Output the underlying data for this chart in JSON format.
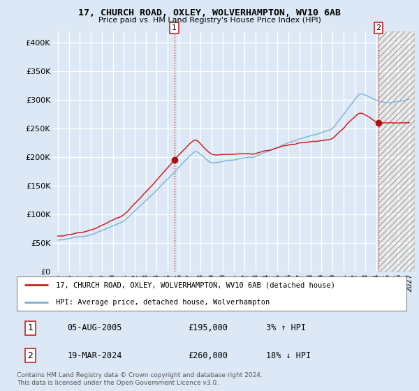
{
  "title": "17, CHURCH ROAD, OXLEY, WOLVERHAMPTON, WV10 6AB",
  "subtitle": "Price paid vs. HM Land Registry's House Price Index (HPI)",
  "ylim": [
    0,
    420000
  ],
  "yticks": [
    0,
    50000,
    100000,
    150000,
    200000,
    250000,
    300000,
    350000,
    400000
  ],
  "ytick_labels": [
    "£0",
    "£50K",
    "£100K",
    "£150K",
    "£200K",
    "£250K",
    "£300K",
    "£350K",
    "£400K"
  ],
  "bg_color": "#dce8f5",
  "plot_bg_color": "#dce8f5",
  "future_bg_color": "#e8e8e8",
  "grid_color": "#ffffff",
  "hpi_color": "#7bafd4",
  "price_color": "#cc2222",
  "marker_color": "#aa1111",
  "transaction1": {
    "date": "05-AUG-2005",
    "price": 195000,
    "label": "1",
    "hpi_rel": "3% ↑ HPI"
  },
  "transaction2": {
    "date": "19-MAR-2024",
    "price": 260000,
    "label": "2",
    "hpi_rel": "18% ↓ HPI"
  },
  "legend_line1": "17, CHURCH ROAD, OXLEY, WOLVERHAMPTON, WV10 6AB (detached house)",
  "legend_line2": "HPI: Average price, detached house, Wolverhampton",
  "footer": "Contains HM Land Registry data © Crown copyright and database right 2024.\nThis data is licensed under the Open Government Licence v3.0.",
  "t1_year": 2005.6,
  "t2_year": 2024.2,
  "xmin": 1994.5,
  "xmax": 2027.5,
  "future_start": 2024.2
}
